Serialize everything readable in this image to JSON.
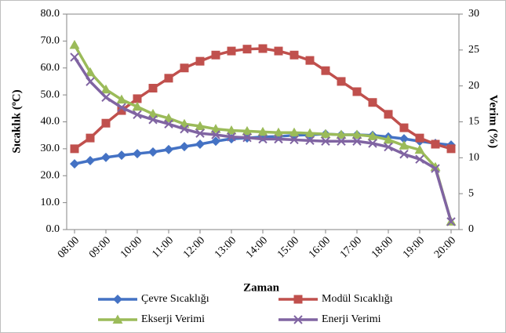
{
  "chart_data": {
    "type": "line",
    "xlabel": "Zaman",
    "ylabel": "Sıcaklık (ºC)",
    "y2label": "Verim (%)",
    "categories": [
      "08:00",
      null,
      "09:00",
      null,
      "10:00",
      null,
      "11:00",
      null,
      "12:00",
      null,
      "13:00",
      null,
      "14:00",
      null,
      "15:00",
      null,
      "16:00",
      null,
      "17:00",
      null,
      "18:00",
      null,
      "19:00",
      null,
      "20:00"
    ],
    "ylim": [
      0,
      80
    ],
    "yticks": [
      {
        "value": 0,
        "label": "0.0"
      },
      {
        "value": 10,
        "label": "10.0"
      },
      {
        "value": 20,
        "label": "20.0"
      },
      {
        "value": 30,
        "label": "30.0"
      },
      {
        "value": 40,
        "label": "40.0"
      },
      {
        "value": 50,
        "label": "50.0"
      },
      {
        "value": 60,
        "label": "60.0"
      },
      {
        "value": 70,
        "label": "70.0"
      },
      {
        "value": 80,
        "label": "80.0"
      }
    ],
    "y2lim": [
      0,
      30
    ],
    "y2ticks": [
      0,
      5,
      10,
      15,
      20,
      25,
      30
    ],
    "series": [
      {
        "name": "Çevre Sıcaklığı",
        "color": "#4472c4",
        "marker": "diamond",
        "values": [
          24.4,
          25.6,
          26.8,
          27.6,
          28.2,
          28.8,
          29.7,
          30.8,
          31.7,
          32.8,
          33.7,
          34,
          34.4,
          34.6,
          35,
          35.2,
          35.5,
          35.2,
          35.2,
          35,
          34.4,
          33.7,
          32.8,
          32,
          31.4
        ]
      },
      {
        "name": "Modül Sıcaklığı",
        "color": "#c0504d",
        "marker": "square",
        "values": [
          30,
          34,
          39.5,
          44.2,
          48.6,
          52.5,
          56.2,
          60,
          62.5,
          64.8,
          66.3,
          67,
          67.2,
          66.3,
          64.8,
          62.8,
          59,
          55,
          51.2,
          47.2,
          42.8,
          37.8,
          34,
          31.7,
          30
        ]
      },
      {
        "name": "Ekserji Verimi",
        "color": "#9bbb59",
        "marker": "triangle",
        "axis": "y2",
        "values": [
          25.7,
          21.9,
          19.5,
          18.1,
          17.1,
          16.1,
          15.5,
          14.7,
          14.4,
          14,
          13.8,
          13.7,
          13.6,
          13.5,
          13.5,
          13.4,
          13.3,
          13.2,
          13.2,
          13,
          12.5,
          11.7,
          11.1,
          8.7,
          1.1
        ]
      },
      {
        "name": "Enerji Verimi",
        "color": "#8064a2",
        "marker": "x",
        "axis": "y2",
        "values": [
          24,
          20.6,
          18.4,
          17,
          16,
          15.3,
          14.7,
          14,
          13.4,
          13.2,
          12.9,
          12.8,
          12.6,
          12.6,
          12.5,
          12.4,
          12.3,
          12.3,
          12.3,
          12,
          11.5,
          10.5,
          9.8,
          8.5,
          1.1
        ]
      }
    ]
  }
}
